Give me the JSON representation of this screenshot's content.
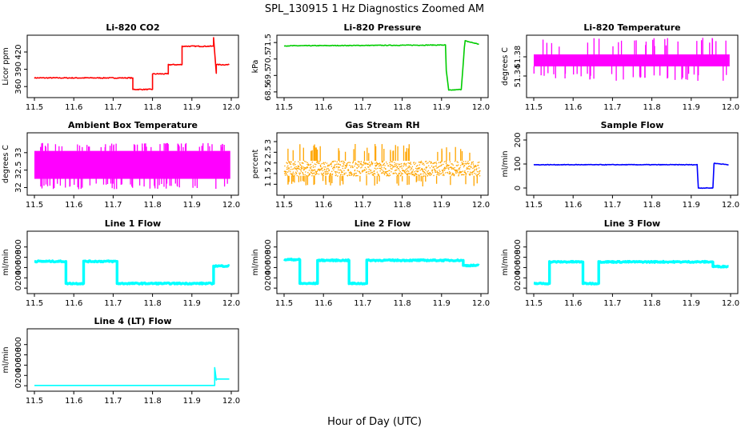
{
  "title": "SPL_130915  1 Hz Diagnostics Zoomed AM",
  "xlabel": "Hour of Day (UTC)",
  "chart_data": [
    {
      "type": "line",
      "title": "Li-820 CO2",
      "ylabel": "Licor ppm",
      "color": "#ff0000",
      "xlim": [
        11.5,
        12.0
      ],
      "ylim": [
        345,
        445
      ],
      "xticks": [
        11.5,
        11.6,
        11.7,
        11.8,
        11.9,
        12.0
      ],
      "yticks": [
        360,
        390,
        420
      ],
      "noise": 0.8,
      "x": [
        11.5,
        11.75,
        11.75,
        11.8,
        11.8,
        11.84,
        11.84,
        11.875,
        11.875,
        11.955,
        11.955,
        11.962,
        11.962,
        11.995
      ],
      "y": [
        375,
        375,
        355,
        355,
        382,
        382,
        398,
        398,
        430,
        430,
        445,
        383,
        398,
        398
      ]
    },
    {
      "type": "line",
      "title": "Li-820 Pressure",
      "ylabel": "kPa",
      "color": "#00cc00",
      "xlim": [
        11.5,
        12.0
      ],
      "ylim": [
        68.3,
        71.8
      ],
      "xticks": [
        11.5,
        11.6,
        11.7,
        11.8,
        11.9,
        12.0
      ],
      "yticks": [
        68.5,
        69.5,
        70.5,
        71.5
      ],
      "noise": 0.02,
      "x": [
        11.5,
        11.91,
        11.912,
        11.918,
        11.95,
        11.958,
        11.96,
        11.995
      ],
      "y": [
        71.3,
        71.35,
        69.8,
        68.6,
        68.65,
        71.2,
        71.6,
        71.4
      ]
    },
    {
      "type": "band",
      "title": "Li-820 Temperature",
      "ylabel": "degrees C",
      "color": "#ff00ff",
      "xlim": [
        11.5,
        12.0
      ],
      "ylim": [
        51.3,
        51.42
      ],
      "xticks": [
        11.5,
        11.6,
        11.7,
        11.8,
        11.9,
        12.0
      ],
      "yticks": [
        51.34,
        51.38
      ],
      "band": [
        51.36,
        51.385
      ],
      "spike_hi": 51.42,
      "spike_lo": 51.33,
      "spikes": 70
    },
    {
      "type": "band",
      "title": "Ambient Box Temperature",
      "ylabel": "degrees C",
      "color": "#ff00ff",
      "xlim": [
        11.5,
        12.0
      ],
      "ylim": [
        31.85,
        33.5
      ],
      "xticks": [
        11.5,
        11.6,
        11.7,
        11.8,
        11.9,
        12.0
      ],
      "yticks": [
        32.0,
        32.5,
        33.0
      ],
      "band": [
        32.25,
        33.05
      ],
      "spike_hi": 33.28,
      "spike_lo": 31.95,
      "spikes": 120
    },
    {
      "type": "band",
      "title": "Gas Stream RH",
      "ylabel": "percent",
      "color": "#ffa500",
      "xlim": [
        11.5,
        12.0
      ],
      "ylim": [
        0.6,
        3.3
      ],
      "xticks": [
        11.5,
        11.6,
        11.7,
        11.8,
        11.9,
        12.0
      ],
      "yticks": [
        1.0,
        1.5,
        2.0,
        2.5,
        3.0
      ],
      "band": [
        1.4,
        2.1
      ],
      "spike_hi": 2.9,
      "spike_lo": 0.9,
      "spikes": 90,
      "dotted": true
    },
    {
      "type": "line",
      "title": "Sample Flow",
      "ylabel": "ml/min",
      "color": "#0000ff",
      "xlim": [
        11.5,
        12.0
      ],
      "ylim": [
        -20,
        220
      ],
      "xticks": [
        11.5,
        11.6,
        11.7,
        11.8,
        11.9,
        12.0
      ],
      "yticks": [
        0,
        100,
        200
      ],
      "noise": 1.2,
      "x": [
        11.5,
        11.915,
        11.918,
        11.955,
        11.958,
        11.995
      ],
      "y": [
        97,
        97,
        0,
        0,
        103,
        97
      ]
    },
    {
      "type": "line",
      "title": "Line 1 Flow",
      "ylabel": "ml/min",
      "color": "#00ffff",
      "xlim": [
        11.5,
        12.0
      ],
      "ylim": [
        -60,
        1060
      ],
      "xticks": [
        11.5,
        11.6,
        11.7,
        11.8,
        11.9,
        12.0
      ],
      "yticks": [
        0,
        200,
        400,
        600,
        800
      ],
      "noise": 12,
      "x": [
        11.5,
        11.58,
        11.58,
        11.625,
        11.625,
        11.71,
        11.71,
        11.955,
        11.955,
        11.995
      ],
      "y": [
        520,
        520,
        90,
        90,
        520,
        520,
        90,
        90,
        430,
        430
      ]
    },
    {
      "type": "line",
      "title": "Line 2 Flow",
      "ylabel": "ml/min",
      "color": "#00ffff",
      "xlim": [
        11.5,
        12.0
      ],
      "ylim": [
        -60,
        1060
      ],
      "xticks": [
        11.5,
        11.6,
        11.7,
        11.8,
        11.9,
        12.0
      ],
      "yticks": [
        0,
        200,
        400,
        600,
        800
      ],
      "noise": 12,
      "x": [
        11.5,
        11.54,
        11.54,
        11.585,
        11.585,
        11.665,
        11.665,
        11.71,
        11.71,
        11.955,
        11.955,
        11.995
      ],
      "y": [
        555,
        555,
        90,
        90,
        540,
        540,
        90,
        90,
        540,
        540,
        440,
        440
      ]
    },
    {
      "type": "line",
      "title": "Line 3 Flow",
      "ylabel": "ml/min",
      "color": "#00ffff",
      "xlim": [
        11.5,
        12.0
      ],
      "ylim": [
        -60,
        1060
      ],
      "xticks": [
        11.5,
        11.6,
        11.7,
        11.8,
        11.9,
        12.0
      ],
      "yticks": [
        0,
        200,
        400,
        600,
        800
      ],
      "noise": 12,
      "x": [
        11.5,
        11.54,
        11.54,
        11.625,
        11.625,
        11.665,
        11.665,
        11.955,
        11.955,
        11.995
      ],
      "y": [
        90,
        90,
        510,
        510,
        90,
        90,
        510,
        510,
        420,
        420
      ]
    },
    {
      "type": "line",
      "title": "Line 4 (LT) Flow",
      "ylabel": "ml/min",
      "color": "#00ffff",
      "xlim": [
        11.5,
        12.0
      ],
      "ylim": [
        -60,
        1060
      ],
      "xticks": [
        11.5,
        11.6,
        11.7,
        11.8,
        11.9,
        12.0
      ],
      "yticks": [
        0,
        200,
        400,
        600,
        800
      ],
      "noise": 0,
      "x": [
        11.5,
        11.958,
        11.958,
        11.962,
        11.962,
        11.995
      ],
      "y": [
        5,
        5,
        350,
        110,
        130,
        130
      ]
    }
  ]
}
